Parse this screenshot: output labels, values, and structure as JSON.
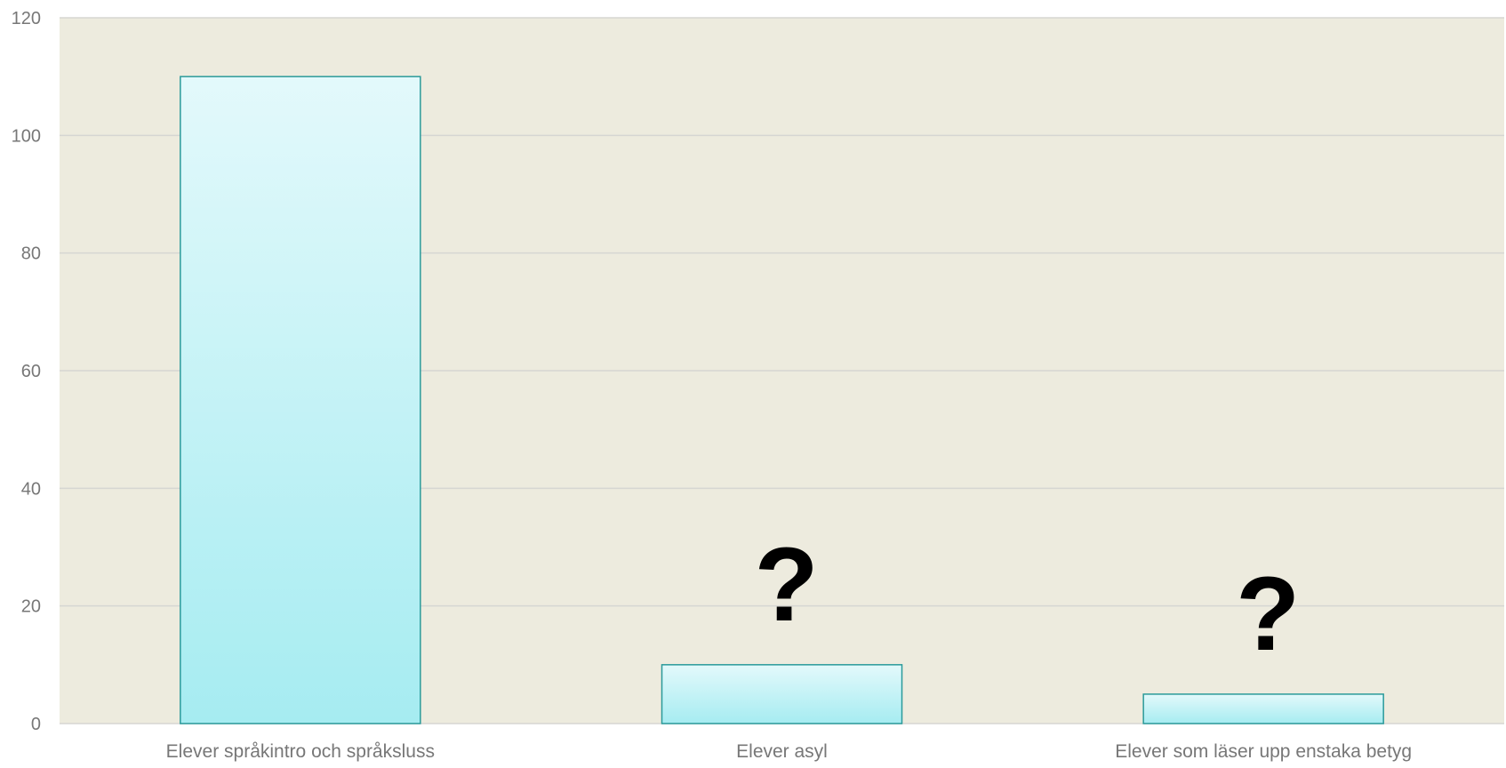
{
  "chart_data": {
    "type": "bar",
    "categories": [
      "Elever språkintro och språksluss",
      "Elever asyl",
      "Elever som läser upp enstaka betyg"
    ],
    "values": [
      110,
      10,
      5
    ],
    "annotations": [
      "",
      "?",
      "?"
    ],
    "ylim": [
      0,
      120
    ],
    "yticks": [
      0,
      20,
      40,
      60,
      80,
      100,
      120
    ],
    "title": "",
    "xlabel": "",
    "ylabel": "",
    "grid": true,
    "legend": "none",
    "colors": {
      "plot_background": "#EDEBDE",
      "gridline": "#D6D6D2",
      "bar_top": "#E3F9FB",
      "bar_bottom": "#A6ECF1",
      "bar_border": "#2A9A9A",
      "tick_text": "#777777",
      "annotation_text": "#000000"
    }
  }
}
